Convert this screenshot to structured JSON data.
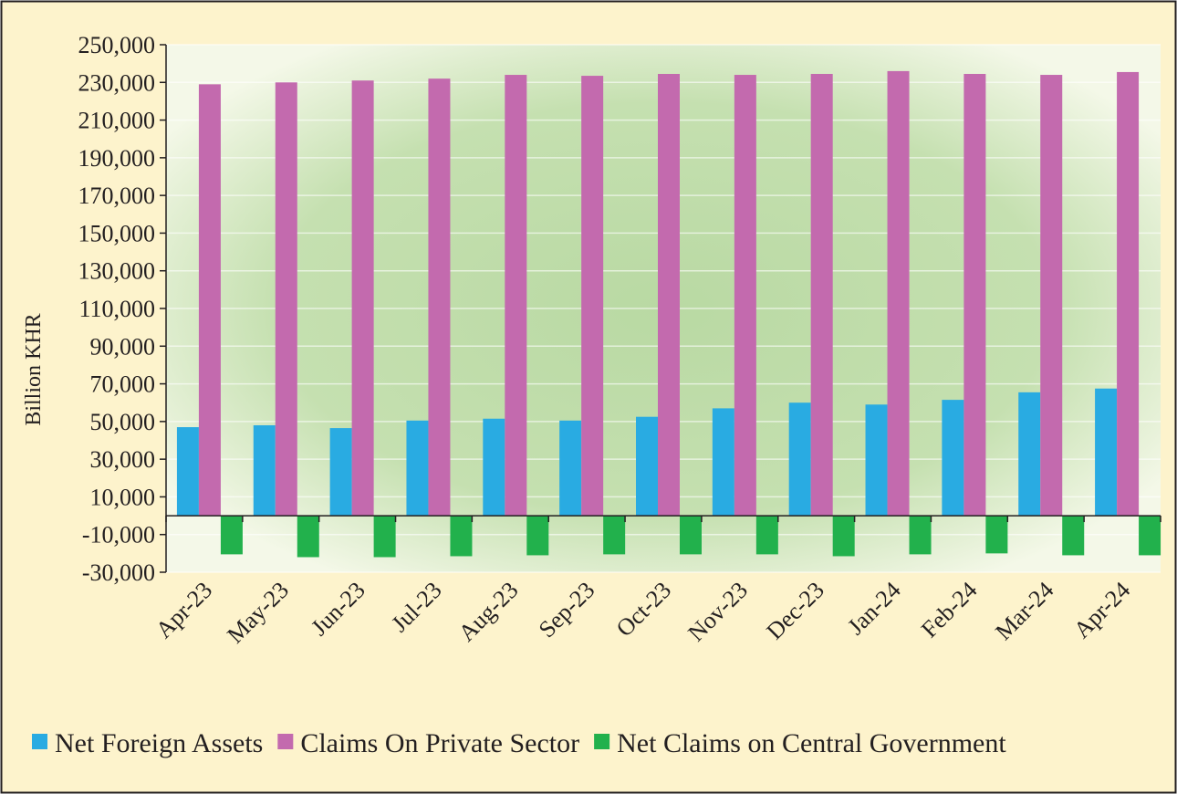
{
  "chart_data": {
    "type": "bar",
    "y_label": "Billion KHR",
    "categories": [
      "Apr-23",
      "May-23",
      "Jun-23",
      "Jul-23",
      "Aug-23",
      "Sep-23",
      "Oct-23",
      "Nov-23",
      "Dec-23",
      "Jan-24",
      "Feb-24",
      "Mar-24",
      "Apr-24"
    ],
    "series": [
      {
        "name": "Net Foreign Assets",
        "color": "#29abe2",
        "values": [
          47000,
          48000,
          46500,
          50500,
          51500,
          50500,
          52500,
          57000,
          60000,
          59000,
          61500,
          65500,
          67500
        ]
      },
      {
        "name": "Claims On Private Sector",
        "color": "#c36aae",
        "values": [
          229000,
          230000,
          231000,
          232000,
          234000,
          233500,
          234500,
          234000,
          234500,
          236000,
          234500,
          234000,
          235500
        ]
      },
      {
        "name": "Net Claims on Central Government",
        "color": "#22b14c",
        "values": [
          -20500,
          -22000,
          -22000,
          -21500,
          -21000,
          -20500,
          -20500,
          -20500,
          -21500,
          -20500,
          -20000,
          -21000,
          -21000
        ]
      }
    ],
    "ylim": [
      -30000,
      250000
    ],
    "yticks": [
      {
        "value": -30000,
        "label": "-30,000"
      },
      {
        "value": -10000,
        "label": "-10,000"
      },
      {
        "value": 10000,
        "label": "10,000"
      },
      {
        "value": 30000,
        "label": "30,000"
      },
      {
        "value": 50000,
        "label": "50,000"
      },
      {
        "value": 70000,
        "label": "70,000"
      },
      {
        "value": 90000,
        "label": "90,000"
      },
      {
        "value": 110000,
        "label": "110,000"
      },
      {
        "value": 130000,
        "label": "130,000"
      },
      {
        "value": 150000,
        "label": "150,000"
      },
      {
        "value": 170000,
        "label": "170,000"
      },
      {
        "value": 190000,
        "label": "190,000"
      },
      {
        "value": 210000,
        "label": "210,000"
      },
      {
        "value": 230000,
        "label": "230,000"
      },
      {
        "value": 250000,
        "label": "250,000"
      }
    ],
    "grid": true,
    "legend": "bottom"
  }
}
